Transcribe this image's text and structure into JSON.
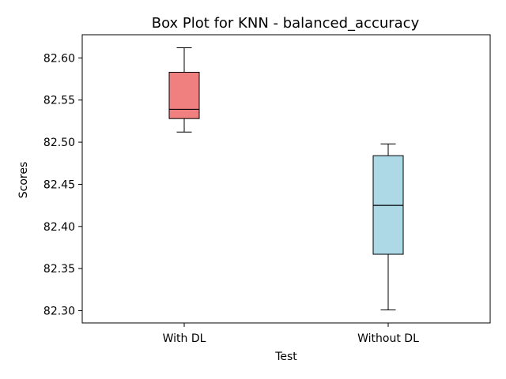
{
  "chart_data": {
    "type": "box",
    "title": "Box Plot for KNN - balanced_accuracy",
    "xlabel": "Test",
    "ylabel": "Scores",
    "categories": [
      "With DL",
      "Without DL"
    ],
    "series": [
      {
        "whisker_low": 82.512,
        "q1": 82.528,
        "median": 82.539,
        "q3": 82.583,
        "whisker_high": 82.612,
        "color": "#f08080"
      },
      {
        "whisker_low": 82.301,
        "q1": 82.367,
        "median": 82.425,
        "q3": 82.484,
        "whisker_high": 82.498,
        "color": "#add8e6"
      }
    ],
    "ylim": [
      82.2855,
      82.6275
    ],
    "yticks": [
      82.3,
      82.35,
      82.4,
      82.45,
      82.5,
      82.55,
      82.6
    ],
    "grid": false,
    "legend": "none"
  }
}
